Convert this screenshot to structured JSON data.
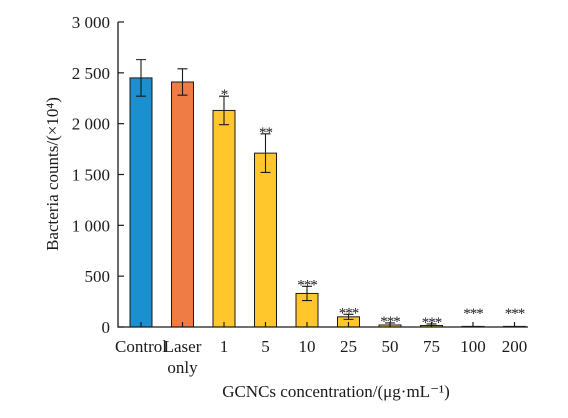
{
  "chart_data": {
    "type": "bar",
    "categories": [
      "Control",
      "Laser",
      "1",
      "5",
      "10",
      "25",
      "50",
      "75",
      "100",
      "200"
    ],
    "category_sublabels": [
      "",
      "only",
      "",
      "",
      "",
      "",
      "",
      "",
      "",
      ""
    ],
    "values": [
      2450,
      2410,
      2130,
      1710,
      330,
      100,
      20,
      15,
      3,
      2
    ],
    "errors": [
      180,
      130,
      140,
      190,
      70,
      25,
      20,
      15,
      0,
      0
    ],
    "significance": [
      "",
      "",
      "*",
      "**",
      "***",
      "***",
      "***",
      "***",
      "***",
      "***"
    ],
    "bar_colors": [
      "#1b8fd0",
      "#f07c45",
      "#ffc72c",
      "#ffc72c",
      "#ffc72c",
      "#ffc72c",
      "#ffc72c",
      "#ffc72c",
      "#ffc72c",
      "#ffc72c"
    ],
    "xlabel": "GCNCs concentration/(μg·mL⁻¹)",
    "ylabel": "Bacteria counts/(×10⁴)",
    "ylim": [
      0,
      3000
    ],
    "yticks": [
      0,
      500,
      1000,
      1500,
      2000,
      2500,
      3000
    ],
    "ytick_labels": [
      "0",
      "500",
      "1 000",
      "1 500",
      "2 000",
      "2 500",
      "3 000"
    ],
    "grid": false
  }
}
